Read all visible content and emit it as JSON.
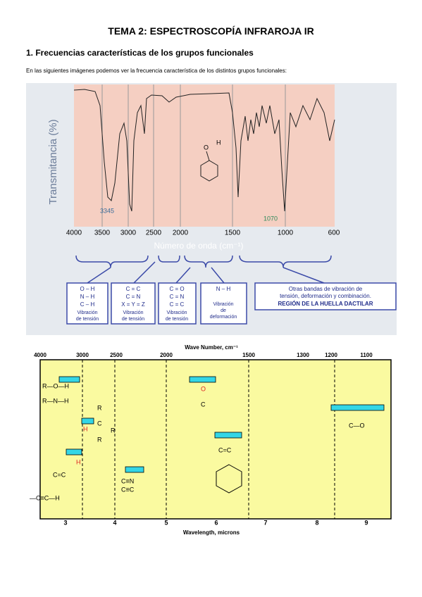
{
  "header": {
    "title": "TEMA 2: ESPECTROSCOPÍA INFRAROJA IR"
  },
  "section": {
    "heading": "1. Frecuencias características de los grupos funcionales",
    "intro": "En las siguientes imágenes podemos ver la frecuencia característica de los distintos grupos funcionales:"
  },
  "figure1": {
    "y_axis_label": "Transmitancia (%)",
    "x_axis_label": "Número de onda (cm⁻¹)",
    "x_ticks": [
      "4000",
      "3500",
      "3000",
      "2500",
      "2000",
      "1500",
      "1000",
      "600"
    ],
    "peak_labels": [
      "3345",
      "1070"
    ],
    "molecule": [
      "O",
      "H"
    ],
    "boxes": [
      [
        "O – H",
        "N – H",
        "C – H",
        "Vibración",
        "de tensión"
      ],
      [
        "C = C",
        "C = N",
        "X = Y = Z",
        "Vibración",
        "de tensión"
      ],
      [
        "C = O",
        "C = N",
        "C = C",
        "Vibración",
        "de tensión"
      ],
      [
        "N – H",
        "Vibración",
        "de",
        "deformación"
      ],
      [
        "Otras bandas de vibración de",
        "tensión, deformación y combinación.",
        "REGIÓN DE LA HUELLA DACTILAR"
      ]
    ]
  },
  "figure2": {
    "top_axis_label": "Wave Number, cm⁻¹",
    "bottom_axis_label": "Wavelength, microns",
    "top_ticks": [
      "4000",
      "3000",
      "2500",
      "2000",
      "1500",
      "1300",
      "1200",
      "1100"
    ],
    "bottom_ticks": [
      "3",
      "4",
      "5",
      "6",
      "7",
      "8",
      "9"
    ],
    "structures": [
      "R—O—H",
      "R—N—H",
      "O",
      "C",
      "R",
      "H",
      "C",
      "R",
      "R",
      "H",
      "C=C",
      "C≡N",
      "C≡C",
      "C=C",
      "C—O",
      "—C≡C—H"
    ]
  }
}
